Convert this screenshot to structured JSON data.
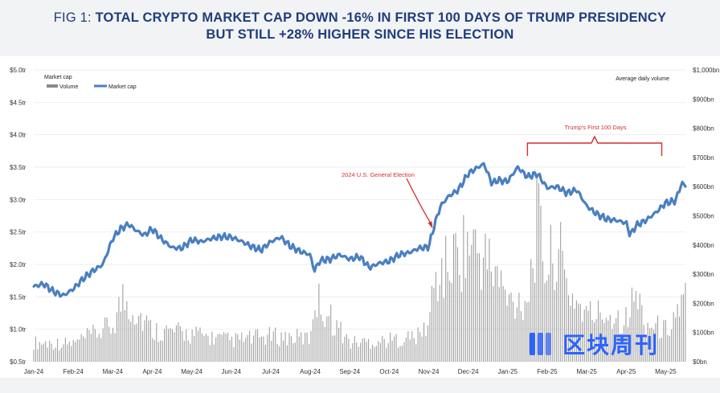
{
  "header": {
    "fig_label": "FIG 1: ",
    "headline_line1": "TOTAL CRYPTO MARKET CAP DOWN -16% IN FIRST 100 DAYS OF TRUMP PRESIDENCY",
    "headline_line2": "BUT STILL +28% HIGHER SINCE HIS ELECTION"
  },
  "watermark": {
    "text": "区块周刊"
  },
  "colors": {
    "title": "#1f3d7a",
    "line": "#4a7fc1",
    "bars": "#9a9a9a",
    "annotation": "#d32f2f"
  },
  "chart_data": {
    "type": "line",
    "title": "",
    "left_axis_label": "Market cap",
    "right_axis_label": "Average daily volume",
    "left_ticks": [
      "$0.5tr",
      "$1.0tr",
      "$1.5tr",
      "$2.0tr",
      "$2.5tr",
      "$3.0tr",
      "$3.5tr",
      "$4.0tr",
      "$4.5tr",
      "$5.0tr"
    ],
    "right_ticks": [
      "$0bn",
      "$100bn",
      "$200bn",
      "$300bn",
      "$400bn",
      "$500bn",
      "$600bn",
      "$700bn",
      "$800bn",
      "$900bn",
      "$1,000bn"
    ],
    "ylim_left": [
      0.5,
      5.0
    ],
    "ylim_right": [
      0,
      1000
    ],
    "x_ticks": [
      "Jan-24",
      "Feb-24",
      "Mar-24",
      "Apr-24",
      "May-24",
      "Jun-24",
      "Jul-24",
      "Aug-24",
      "Sep-24",
      "Oct-24",
      "Nov-24",
      "Dec-24",
      "Jan-25",
      "Feb-25",
      "Mar-25",
      "Apr-25",
      "May-25"
    ],
    "legend": [
      {
        "name": "Volume",
        "kind": "bar"
      },
      {
        "name": "Market cap",
        "kind": "line"
      }
    ],
    "series": [
      {
        "name": "Market cap",
        "axis": "left",
        "unit": "$tr",
        "x_month_index": [
          0,
          0.25,
          0.5,
          0.75,
          1.0,
          1.25,
          1.5,
          1.75,
          2.0,
          2.2,
          2.4,
          2.6,
          2.8,
          3.0,
          3.25,
          3.5,
          3.75,
          4.0,
          4.25,
          4.5,
          4.75,
          5.0,
          5.25,
          5.5,
          5.75,
          6.0,
          6.25,
          6.5,
          6.75,
          7.0,
          7.1,
          7.25,
          7.5,
          7.75,
          8.0,
          8.25,
          8.5,
          8.75,
          9.0,
          9.25,
          9.5,
          9.75,
          10.0,
          10.15,
          10.3,
          10.5,
          10.75,
          11.0,
          11.25,
          11.4,
          11.6,
          11.75,
          12.0,
          12.25,
          12.5,
          12.75,
          13.0,
          13.25,
          13.5,
          13.75,
          14.0,
          14.25,
          14.5,
          14.75,
          15.0,
          15.1,
          15.25,
          15.5,
          15.75,
          16.0,
          16.25,
          16.4,
          16.5
        ],
        "values": [
          1.66,
          1.7,
          1.58,
          1.52,
          1.62,
          1.78,
          1.9,
          2.0,
          2.4,
          2.55,
          2.62,
          2.52,
          2.45,
          2.55,
          2.38,
          2.26,
          2.25,
          2.38,
          2.35,
          2.4,
          2.43,
          2.42,
          2.36,
          2.28,
          2.22,
          2.35,
          2.42,
          2.28,
          2.2,
          2.15,
          1.9,
          2.06,
          2.08,
          2.15,
          2.08,
          2.12,
          1.95,
          2.02,
          2.05,
          2.15,
          2.18,
          2.25,
          2.27,
          2.62,
          2.9,
          3.05,
          3.15,
          3.4,
          3.5,
          3.55,
          3.25,
          3.3,
          3.28,
          3.5,
          3.35,
          3.4,
          3.18,
          3.2,
          3.1,
          3.15,
          2.9,
          2.78,
          2.7,
          2.68,
          2.64,
          2.45,
          2.6,
          2.68,
          2.8,
          2.95,
          2.98,
          3.25,
          3.22
        ]
      },
      {
        "name": "Volume",
        "axis": "right",
        "unit": "$bn",
        "x_month_index": [
          0,
          1,
          2,
          2.25,
          2.5,
          3,
          4,
          5,
          6,
          7,
          7.1,
          8,
          9,
          9.75,
          10,
          10.15,
          10.4,
          10.6,
          11,
          11.25,
          11.5,
          11.75,
          12,
          12.5,
          12.75,
          13,
          13.25,
          13.5,
          14,
          14.5,
          15,
          15.25,
          15.5,
          16,
          16.5
        ],
        "values": [
          90,
          85,
          170,
          300,
          260,
          150,
          130,
          100,
          120,
          110,
          310,
          90,
          100,
          120,
          180,
          380,
          430,
          480,
          560,
          520,
          470,
          400,
          280,
          300,
          660,
          430,
          560,
          350,
          220,
          230,
          200,
          320,
          180,
          150,
          300
        ]
      }
    ],
    "annotations": [
      {
        "text": "2024 U.S. General Election",
        "target_month_index": 10.1
      },
      {
        "text": "Trump's First 100 Days",
        "span_month_index": [
          12.5,
          15.9
        ]
      }
    ]
  }
}
